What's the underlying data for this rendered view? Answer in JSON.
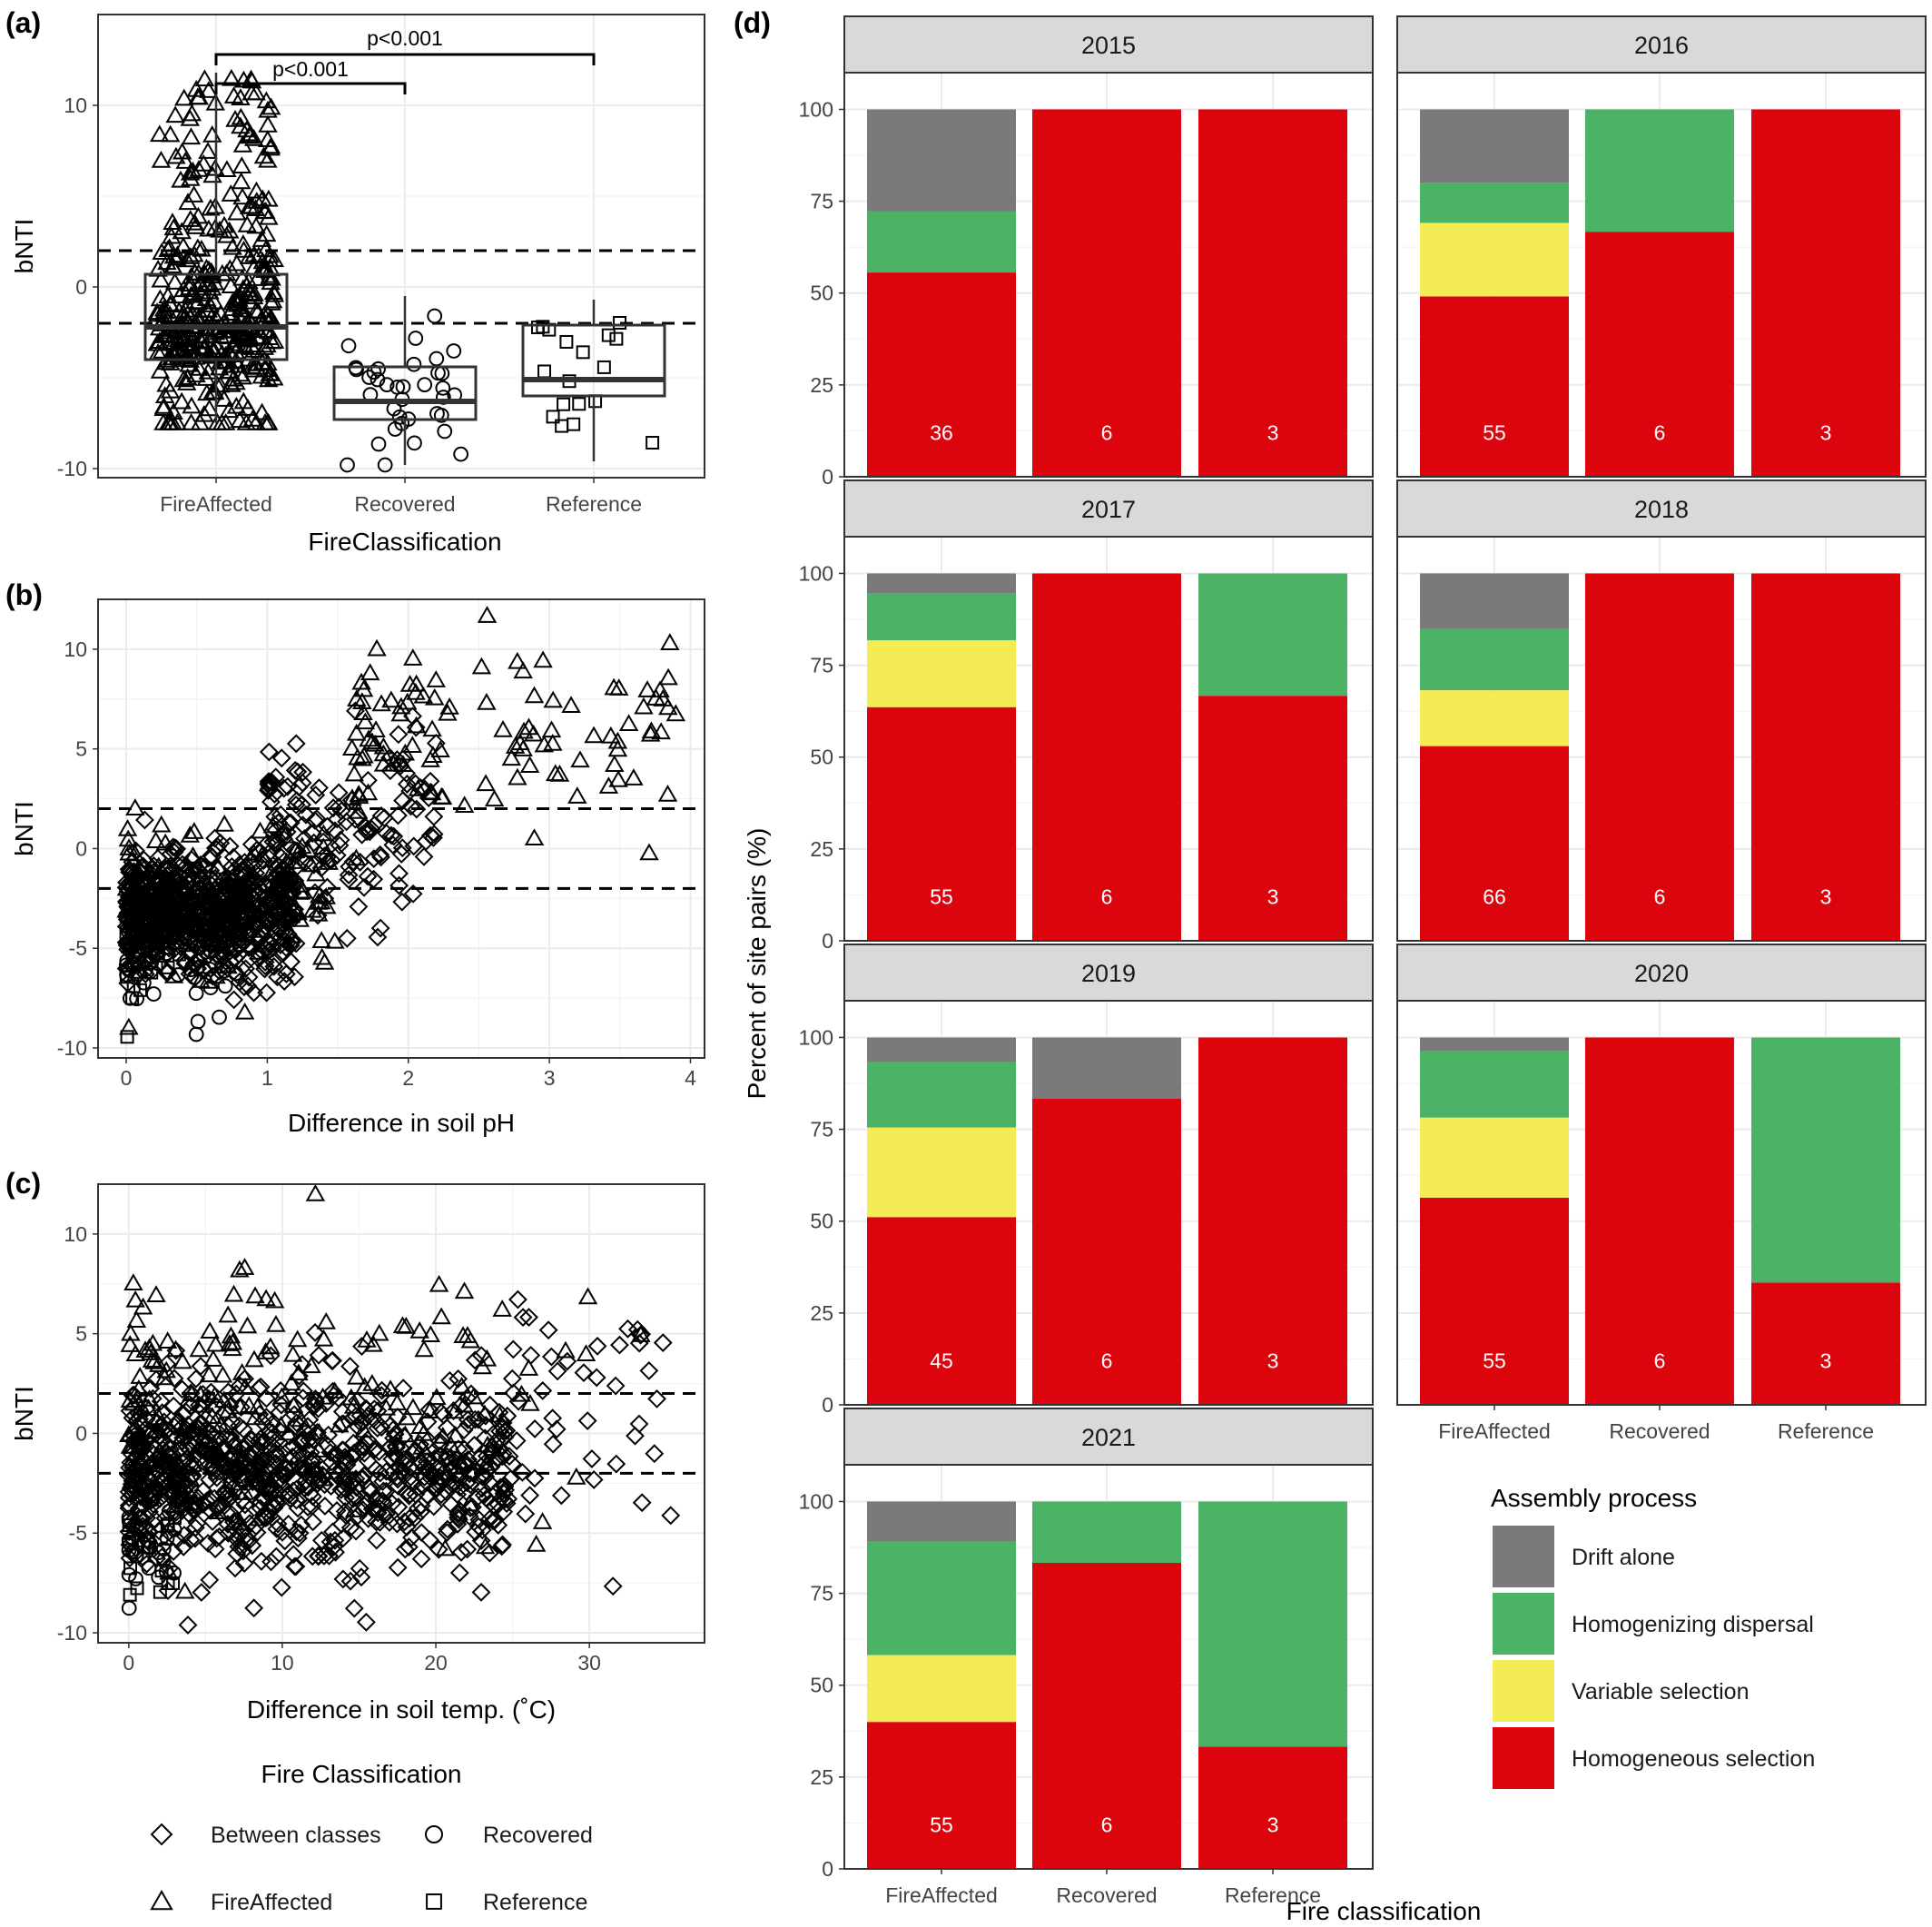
{
  "panel_labels": [
    "(a)",
    "(b)",
    "(c)",
    "(d)"
  ],
  "colors": {
    "drift": "#7a7a7a",
    "homogenizing_dispersal": "#4cb265",
    "variable_selection": "#f4ec55",
    "homogeneous_selection": "#dd050d",
    "strip": "#d9d9d9",
    "grid": "#ebebeb"
  },
  "chart_data": [
    {
      "id": "a",
      "type": "scatter",
      "subtype": "box-jitter",
      "xlabel": "FireClassification",
      "ylabel": "bNTI",
      "categories": [
        "FireAffected",
        "Recovered",
        "Reference"
      ],
      "ylim": [
        -10.5,
        15
      ],
      "yticks": [
        -10,
        0,
        10
      ],
      "hlines": [
        -2,
        2
      ],
      "annotations": [
        {
          "text": "p<0.001",
          "from": "FireAffected",
          "to": "Recovered"
        },
        {
          "text": "p<0.001",
          "from": "FireAffected",
          "to": "Reference"
        }
      ],
      "boxes": [
        {
          "category": "FireAffected",
          "q1": -4.0,
          "median": -2.2,
          "q3": 0.7,
          "whisker_low": -7.5,
          "whisker_high": 11.8,
          "marker": "triangle",
          "n": 420,
          "center": -2.2,
          "spread": 2.6
        },
        {
          "category": "Recovered",
          "q1": -7.3,
          "median": -6.3,
          "q3": -4.4,
          "whisker_low": -9.8,
          "whisker_high": -0.5,
          "marker": "circle",
          "n": 36,
          "center": -5.8,
          "spread": 2.3
        },
        {
          "category": "Reference",
          "q1": -6.0,
          "median": -5.1,
          "q3": -2.1,
          "whisker_low": -9.6,
          "whisker_high": -0.7,
          "marker": "square",
          "n": 18,
          "center": -4.5,
          "spread": 2.3
        }
      ]
    },
    {
      "id": "b",
      "type": "scatter",
      "xlabel": "Difference in soil pH",
      "ylabel": "bNTI",
      "xlim": [
        -0.2,
        4.1
      ],
      "ylim": [
        -10.5,
        12.5
      ],
      "xticks": [
        0,
        1,
        2,
        3,
        4
      ],
      "yticks": [
        -10,
        -5,
        0,
        5,
        10
      ],
      "hlines": [
        -2,
        2
      ],
      "clusters": [
        {
          "marker": "diamond",
          "n": 700,
          "x_range": [
            0,
            1.2
          ],
          "y_center": -3.3,
          "y_spread": 2.0
        },
        {
          "marker": "circle",
          "n": 70,
          "x_range": [
            0,
            0.8
          ],
          "y_center": -5.0,
          "y_spread": 2.2
        },
        {
          "marker": "square",
          "n": 25,
          "x_range": [
            0,
            0.4
          ],
          "y_center": -5.2,
          "y_spread": 2.0
        },
        {
          "marker": "triangle",
          "n": 130,
          "x_range": [
            0,
            1.5
          ],
          "y_center": -2.5,
          "y_spread": 2.6
        },
        {
          "marker": "diamond",
          "n": 160,
          "x_range": [
            1.0,
            2.2
          ],
          "y_center": 0.8,
          "y_spread": 3.0
        },
        {
          "marker": "triangle",
          "n": 110,
          "x_range": [
            1.6,
            3.9
          ],
          "y_center": 5.5,
          "y_spread": 3.3
        }
      ]
    },
    {
      "id": "c",
      "type": "scatter",
      "xlabel": "Difference in soil temp. (˚C)",
      "ylabel": "bNTI",
      "xlim": [
        -2,
        37.5
      ],
      "ylim": [
        -10.5,
        12.5
      ],
      "xticks": [
        0,
        10,
        20,
        30
      ],
      "yticks": [
        -10,
        -5,
        0,
        5,
        10
      ],
      "hlines": [
        -2,
        2
      ],
      "clusters": [
        {
          "marker": "diamond",
          "n": 900,
          "x_range": [
            0,
            25
          ],
          "y_center": -2.0,
          "y_spread": 3.0
        },
        {
          "marker": "triangle",
          "n": 170,
          "x_range": [
            0,
            24
          ],
          "y_center": 1.5,
          "y_spread": 4.5
        },
        {
          "marker": "circle",
          "n": 30,
          "x_range": [
            0,
            3
          ],
          "y_center": -5.5,
          "y_spread": 2.0
        },
        {
          "marker": "square",
          "n": 15,
          "x_range": [
            0,
            3
          ],
          "y_center": -5.5,
          "y_spread": 2.0
        },
        {
          "marker": "diamond",
          "n": 45,
          "x_range": [
            25,
            36
          ],
          "y_center": 1.0,
          "y_spread": 5.0
        },
        {
          "marker": "triangle",
          "n": 12,
          "x_range": [
            24,
            34
          ],
          "y_center": 2.0,
          "y_spread": 5.0
        }
      ]
    },
    {
      "id": "d",
      "type": "bar",
      "stacked": true,
      "xlabel": "Fire classification",
      "ylabel": "Percent of site pairs (%)",
      "categories": [
        "FireAffected",
        "Recovered",
        "Reference"
      ],
      "ylim": [
        0,
        110
      ],
      "yticks": [
        0,
        25,
        50,
        75,
        100
      ],
      "stack_order": [
        "Homogeneous selection",
        "Variable selection",
        "Homogenizing dispersal",
        "Drift alone"
      ],
      "facets": [
        {
          "year": "2015",
          "n": [
            "36",
            "6",
            "3"
          ],
          "stacks": [
            [
              55.6,
              0,
              16.7,
              27.7
            ],
            [
              100,
              0,
              0,
              0
            ],
            [
              100,
              0,
              0,
              0
            ]
          ]
        },
        {
          "year": "2016",
          "n": [
            "55",
            "6",
            "3"
          ],
          "stacks": [
            [
              49.1,
              20.0,
              10.9,
              20.0
            ],
            [
              66.7,
              0,
              33.3,
              0
            ],
            [
              100,
              0,
              0,
              0
            ]
          ]
        },
        {
          "year": "2017",
          "n": [
            "55",
            "6",
            "3"
          ],
          "stacks": [
            [
              63.6,
              18.2,
              12.7,
              5.5
            ],
            [
              100,
              0,
              0,
              0
            ],
            [
              66.7,
              0,
              33.3,
              0
            ]
          ]
        },
        {
          "year": "2018",
          "n": [
            "66",
            "6",
            "3"
          ],
          "stacks": [
            [
              53.0,
              15.2,
              16.7,
              15.1
            ],
            [
              100,
              0,
              0,
              0
            ],
            [
              100,
              0,
              0,
              0
            ]
          ]
        },
        {
          "year": "2019",
          "n": [
            "45",
            "6",
            "3"
          ],
          "stacks": [
            [
              51.1,
              24.4,
              17.8,
              6.7
            ],
            [
              83.3,
              0,
              0,
              16.7
            ],
            [
              100,
              0,
              0,
              0
            ]
          ]
        },
        {
          "year": "2020",
          "n": [
            "55",
            "6",
            "3"
          ],
          "stacks": [
            [
              56.4,
              21.8,
              18.2,
              3.6
            ],
            [
              100,
              0,
              0,
              0
            ],
            [
              33.3,
              0,
              66.7,
              0
            ]
          ]
        },
        {
          "year": "2021",
          "n": [
            "55",
            "6",
            "3"
          ],
          "stacks": [
            [
              40.0,
              18.2,
              30.9,
              10.9
            ],
            [
              83.3,
              0,
              16.7,
              0
            ],
            [
              33.3,
              0,
              66.7,
              0
            ]
          ]
        }
      ]
    }
  ],
  "legend_fire": {
    "title": "Fire Classification",
    "items": [
      {
        "label": "Between classes",
        "marker": "diamond"
      },
      {
        "label": "Recovered",
        "marker": "circle"
      },
      {
        "label": "FireAffected",
        "marker": "triangle"
      },
      {
        "label": "Reference",
        "marker": "square"
      }
    ]
  },
  "legend_assembly": {
    "title": "Assembly process",
    "items": [
      {
        "label": "Drift alone",
        "color": "#7a7a7a"
      },
      {
        "label": "Homogenizing dispersal",
        "color": "#4cb265"
      },
      {
        "label": "Variable selection",
        "color": "#f4ec55"
      },
      {
        "label": "Homogeneous selection",
        "color": "#dd050d"
      }
    ]
  }
}
